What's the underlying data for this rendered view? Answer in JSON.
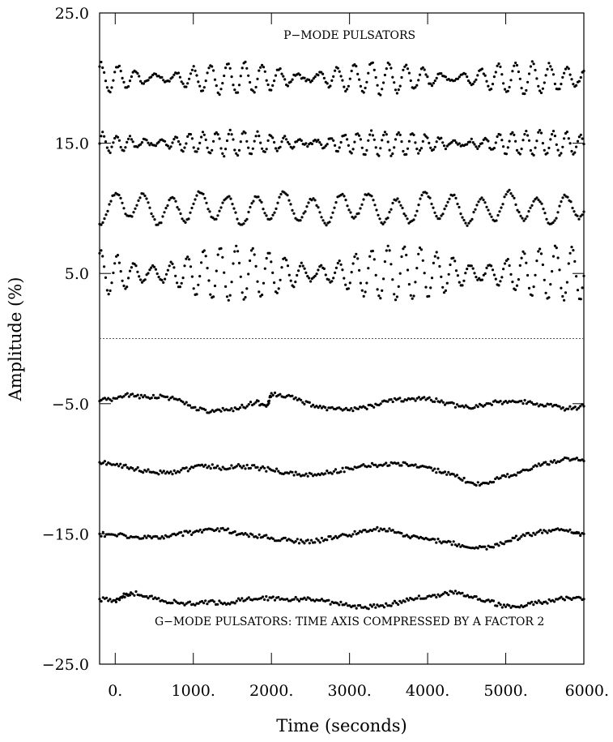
{
  "chart_data": {
    "type": "scatter",
    "xlabel": "Time (seconds)",
    "ylabel": "Amplitude (%)",
    "xlim": [
      -200,
      6000
    ],
    "ylim": [
      -25,
      25
    ],
    "x_ticks": [
      0,
      1000,
      2000,
      3000,
      4000,
      5000,
      6000
    ],
    "x_tick_labels": [
      "0.",
      "1000.",
      "2000.",
      "3000.",
      "4000.",
      "5000.",
      "6000."
    ],
    "y_ticks": [
      25,
      15,
      5,
      -5,
      -15,
      -25
    ],
    "y_tick_labels": [
      "25.0",
      "15.0",
      "5.0",
      "−5.0",
      "−15.0",
      "−25.0"
    ],
    "zero_line": 0,
    "annotations": [
      {
        "text": "P−MODE PULSATORS",
        "x": 3000,
        "y": 23.0
      },
      {
        "text": "G−MODE PULSATORS: TIME AXIS COMPRESSED BY A FACTOR 2",
        "x": 3000,
        "y": -22.0
      }
    ],
    "series": [
      {
        "group": "p-mode",
        "offset": 20,
        "samples": 320,
        "components": [
          {
            "amplitude": 0.7,
            "period": 230,
            "phase": 0.0
          },
          {
            "amplitude": 0.5,
            "period": 205,
            "phase": 1.3
          }
        ]
      },
      {
        "group": "p-mode",
        "offset": 15,
        "samples": 320,
        "components": [
          {
            "amplitude": 0.55,
            "period": 180,
            "phase": 0.4
          },
          {
            "amplitude": 0.4,
            "period": 165,
            "phase": 2.0
          }
        ]
      },
      {
        "group": "p-mode",
        "offset": 10,
        "samples": 300,
        "components": [
          {
            "amplitude": 1.0,
            "period": 360,
            "phase": 1.5
          },
          {
            "amplitude": 0.3,
            "period": 980,
            "phase": 0.6
          }
        ]
      },
      {
        "group": "p-mode",
        "offset": 5,
        "samples": 320,
        "components": [
          {
            "amplitude": 1.3,
            "period": 215,
            "phase": 0.2
          },
          {
            "amplitude": 0.8,
            "period": 195,
            "phase": 1.9
          }
        ]
      },
      {
        "group": "g-mode",
        "points": [
          [
            -200,
            -4.8
          ],
          [
            0,
            -4.6
          ],
          [
            200,
            -4.3
          ],
          [
            400,
            -4.5
          ],
          [
            600,
            -4.4
          ],
          [
            800,
            -4.7
          ],
          [
            1000,
            -5.3
          ],
          [
            1200,
            -5.7
          ],
          [
            1400,
            -5.5
          ],
          [
            1600,
            -5.3
          ],
          [
            1800,
            -4.9
          ],
          [
            1950,
            -5.1
          ],
          [
            2000,
            -4.2
          ],
          [
            2200,
            -4.4
          ],
          [
            2400,
            -4.9
          ],
          [
            2600,
            -5.3
          ],
          [
            2800,
            -5.4
          ],
          [
            3000,
            -5.5
          ],
          [
            3200,
            -5.3
          ],
          [
            3400,
            -5.0
          ],
          [
            3600,
            -4.7
          ],
          [
            3800,
            -4.6
          ],
          [
            4000,
            -4.6
          ],
          [
            4200,
            -4.9
          ],
          [
            4400,
            -5.2
          ],
          [
            4600,
            -5.3
          ],
          [
            4800,
            -5.0
          ],
          [
            5000,
            -4.8
          ],
          [
            5200,
            -4.8
          ],
          [
            5400,
            -5.0
          ],
          [
            5600,
            -5.2
          ],
          [
            5800,
            -5.4
          ],
          [
            6000,
            -5.2
          ]
        ]
      },
      {
        "group": "g-mode",
        "points": [
          [
            -200,
            -9.5
          ],
          [
            0,
            -9.7
          ],
          [
            200,
            -9.9
          ],
          [
            400,
            -10.2
          ],
          [
            600,
            -10.3
          ],
          [
            800,
            -10.2
          ],
          [
            1000,
            -9.9
          ],
          [
            1200,
            -9.8
          ],
          [
            1400,
            -10.0
          ],
          [
            1600,
            -9.8
          ],
          [
            1800,
            -9.9
          ],
          [
            2000,
            -10.1
          ],
          [
            2200,
            -10.3
          ],
          [
            2400,
            -10.5
          ],
          [
            2600,
            -10.4
          ],
          [
            2800,
            -10.2
          ],
          [
            3000,
            -10.0
          ],
          [
            3200,
            -9.8
          ],
          [
            3400,
            -9.7
          ],
          [
            3600,
            -9.6
          ],
          [
            3800,
            -9.7
          ],
          [
            4000,
            -9.9
          ],
          [
            4200,
            -10.3
          ],
          [
            4400,
            -10.7
          ],
          [
            4600,
            -11.2
          ],
          [
            4800,
            -11.0
          ],
          [
            5000,
            -10.6
          ],
          [
            5200,
            -10.2
          ],
          [
            5400,
            -9.8
          ],
          [
            5600,
            -9.5
          ],
          [
            5800,
            -9.2
          ],
          [
            6000,
            -9.4
          ]
        ]
      },
      {
        "group": "g-mode",
        "points": [
          [
            -200,
            -15.0
          ],
          [
            0,
            -15.1
          ],
          [
            200,
            -15.2
          ],
          [
            400,
            -15.3
          ],
          [
            600,
            -15.2
          ],
          [
            800,
            -15.0
          ],
          [
            1000,
            -14.9
          ],
          [
            1200,
            -14.6
          ],
          [
            1400,
            -14.7
          ],
          [
            1600,
            -15.0
          ],
          [
            1800,
            -15.2
          ],
          [
            2000,
            -15.3
          ],
          [
            2200,
            -15.5
          ],
          [
            2400,
            -15.6
          ],
          [
            2600,
            -15.5
          ],
          [
            2800,
            -15.3
          ],
          [
            3000,
            -15.1
          ],
          [
            3200,
            -14.7
          ],
          [
            3400,
            -14.6
          ],
          [
            3600,
            -14.9
          ],
          [
            3800,
            -15.2
          ],
          [
            4000,
            -15.4
          ],
          [
            4200,
            -15.6
          ],
          [
            4400,
            -15.8
          ],
          [
            4600,
            -16.1
          ],
          [
            4800,
            -16.0
          ],
          [
            5000,
            -15.6
          ],
          [
            5200,
            -15.2
          ],
          [
            5400,
            -14.9
          ],
          [
            5600,
            -14.7
          ],
          [
            5800,
            -14.8
          ],
          [
            6000,
            -15.0
          ]
        ]
      },
      {
        "group": "g-mode",
        "points": [
          [
            -200,
            -20.0
          ],
          [
            0,
            -20.1
          ],
          [
            100,
            -19.8
          ],
          [
            200,
            -19.5
          ],
          [
            400,
            -19.8
          ],
          [
            600,
            -20.1
          ],
          [
            800,
            -20.3
          ],
          [
            1000,
            -20.4
          ],
          [
            1200,
            -20.2
          ],
          [
            1400,
            -20.3
          ],
          [
            1600,
            -20.1
          ],
          [
            1800,
            -20.0
          ],
          [
            2000,
            -19.9
          ],
          [
            2200,
            -20.0
          ],
          [
            2400,
            -20.0
          ],
          [
            2600,
            -20.1
          ],
          [
            2800,
            -20.3
          ],
          [
            3000,
            -20.5
          ],
          [
            3200,
            -20.6
          ],
          [
            3400,
            -20.5
          ],
          [
            3600,
            -20.3
          ],
          [
            3800,
            -20.0
          ],
          [
            4000,
            -19.8
          ],
          [
            4200,
            -19.6
          ],
          [
            4400,
            -19.5
          ],
          [
            4600,
            -19.8
          ],
          [
            4800,
            -20.2
          ],
          [
            5000,
            -20.6
          ],
          [
            5200,
            -20.5
          ],
          [
            5400,
            -20.3
          ],
          [
            5600,
            -20.1
          ],
          [
            5800,
            -19.9
          ],
          [
            6000,
            -20.0
          ]
        ]
      }
    ]
  }
}
